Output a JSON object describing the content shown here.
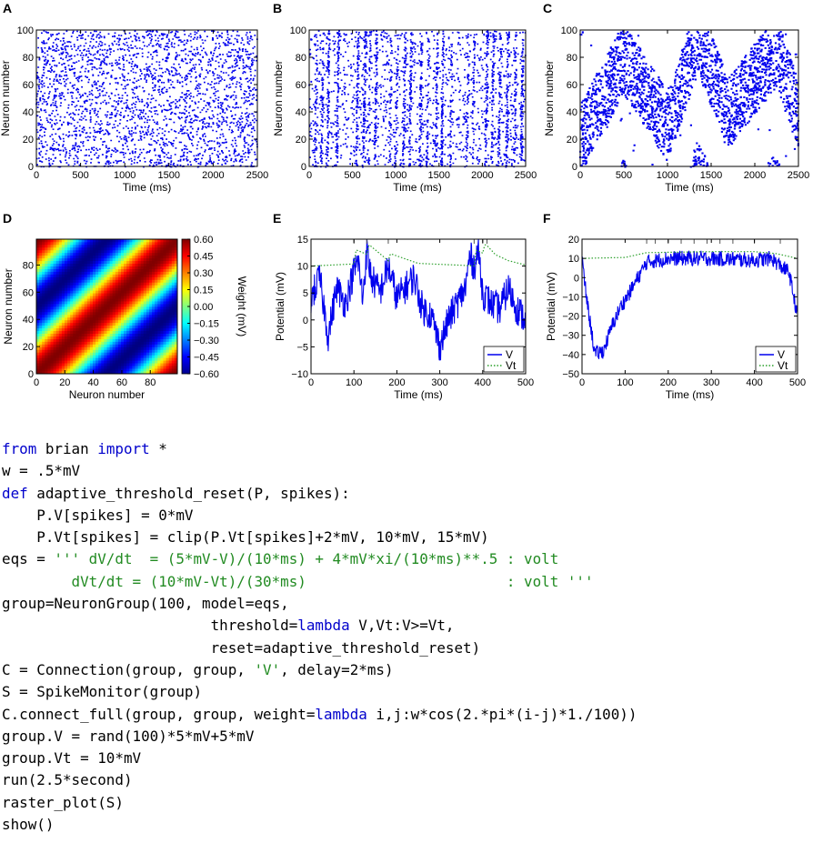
{
  "colors": {
    "raster": "#0000ee",
    "V": "#0000ee",
    "Vt": "#2ca02c",
    "axis": "#000000"
  },
  "panels": {
    "A": "A",
    "B": "B",
    "C": "C",
    "D": "D",
    "E": "E",
    "F": "F"
  },
  "chart_data": [
    {
      "id": "A",
      "type": "scatter",
      "title": "",
      "xlabel": "Time (ms)",
      "ylabel": "Neuron number",
      "xlim": [
        0,
        2500
      ],
      "ylim": [
        0,
        100
      ],
      "xticks": [
        "0",
        "500",
        "1000",
        "1500",
        "2000",
        "2500"
      ],
      "yticks": [
        "0",
        "20",
        "40",
        "60",
        "80",
        "100"
      ],
      "pattern": "random asynchronous spiking, uniform density",
      "color": "#0000ee"
    },
    {
      "id": "B",
      "type": "scatter",
      "title": "",
      "xlabel": "Time (ms)",
      "ylabel": "Neuron number",
      "xlim": [
        0,
        2500
      ],
      "ylim": [
        0,
        100
      ],
      "xticks": [
        "0",
        "500",
        "1000",
        "1500",
        "2000",
        "2500"
      ],
      "yticks": [
        "0",
        "20",
        "40",
        "60",
        "80",
        "100"
      ],
      "pattern": "synchronous vertical bursts",
      "burst_times_ms": [
        80,
        150,
        220,
        330,
        560,
        640,
        700,
        770,
        940,
        1010,
        1100,
        1170,
        1290,
        1370,
        1470,
        1540,
        1640,
        1830,
        1900,
        2050,
        2120,
        2200,
        2290,
        2380,
        2460
      ],
      "color": "#0000ee"
    },
    {
      "id": "C",
      "type": "scatter",
      "title": "",
      "xlabel": "Time (ms)",
      "ylabel": "Neuron number",
      "xlim": [
        0,
        2500
      ],
      "ylim": [
        0,
        100
      ],
      "xticks": [
        "0",
        "500",
        "1000",
        "1500",
        "2000",
        "2500"
      ],
      "yticks": [
        "0",
        "20",
        "40",
        "60",
        "80",
        "100"
      ],
      "pattern": "travelling bump of activity, ~50 neurons wide",
      "bump_center_path": [
        [
          0,
          20
        ],
        [
          500,
          80
        ],
        [
          1000,
          30
        ],
        [
          1350,
          95
        ],
        [
          1700,
          40
        ],
        [
          2250,
          85
        ],
        [
          2500,
          40
        ]
      ],
      "color": "#0000ee"
    },
    {
      "id": "D",
      "type": "heatmap",
      "title": "",
      "xlabel": "Neuron number",
      "ylabel": "Neuron number",
      "xlim": [
        0,
        99
      ],
      "ylim": [
        0,
        99
      ],
      "xticks": [
        "0",
        "20",
        "40",
        "60",
        "80"
      ],
      "yticks": [
        "0",
        "20",
        "40",
        "60",
        "80"
      ],
      "function": "w*cos(2*pi*(i-j)/100)",
      "colorbar": {
        "label": "Weight (mV)",
        "min": -0.6,
        "max": 0.6,
        "ticks": [
          "0.60",
          "0.45",
          "0.30",
          "0.15",
          "0.00",
          "−0.15",
          "−0.30",
          "−0.45",
          "−0.60"
        ]
      }
    },
    {
      "id": "E",
      "type": "line",
      "title": "",
      "xlabel": "Time (ms)",
      "ylabel": "Potential (mV)",
      "xlim": [
        0,
        500
      ],
      "ylim": [
        -10,
        15
      ],
      "xticks": [
        "0",
        "100",
        "200",
        "300",
        "400",
        "500"
      ],
      "yticks": [
        "−10",
        "−5",
        "0",
        "5",
        "10",
        "15"
      ],
      "legend": "bottom-right",
      "spike_ticks_ms": [
        100,
        130,
        180,
        380,
        400,
        410
      ],
      "series": [
        {
          "name": "V",
          "style": "solid",
          "x": [
            0,
            20,
            40,
            60,
            80,
            100,
            110,
            120,
            130,
            140,
            160,
            180,
            200,
            220,
            240,
            260,
            280,
            300,
            320,
            340,
            360,
            370,
            380,
            390,
            400,
            420,
            440,
            460,
            480,
            500
          ],
          "y": [
            4,
            8,
            -3,
            6,
            3,
            9,
            11,
            4,
            13,
            8,
            5,
            10,
            4,
            6,
            8,
            2,
            1,
            -5,
            0,
            3,
            6,
            12,
            10,
            13,
            5,
            3,
            2,
            6,
            2,
            0
          ]
        },
        {
          "name": "Vt",
          "style": "dotted",
          "x": [
            0,
            100,
            105,
            130,
            135,
            180,
            185,
            250,
            380,
            385,
            400,
            405,
            410,
            430,
            460,
            500
          ],
          "y": [
            10,
            10.4,
            13,
            12.2,
            14,
            11,
            12.3,
            10.5,
            10.05,
            13,
            12.4,
            14,
            13.8,
            12.1,
            11,
            10.2
          ]
        }
      ]
    },
    {
      "id": "F",
      "type": "line",
      "title": "",
      "xlabel": "Time (ms)",
      "ylabel": "Potential (mV)",
      "xlim": [
        0,
        500
      ],
      "ylim": [
        -50,
        20
      ],
      "xticks": [
        "0",
        "100",
        "200",
        "300",
        "400",
        "500"
      ],
      "yticks": [
        "−50",
        "−40",
        "−30",
        "−20",
        "−10",
        "0",
        "10",
        "20"
      ],
      "legend": "bottom-right",
      "spike_ticks_ms": [
        150,
        170,
        200,
        230,
        260,
        290,
        320,
        350,
        400,
        460
      ],
      "series": [
        {
          "name": "V",
          "style": "solid",
          "x": [
            0,
            10,
            30,
            50,
            70,
            90,
            110,
            130,
            150,
            200,
            300,
            400,
            440,
            460,
            480,
            500
          ],
          "y": [
            10,
            -10,
            -40,
            -38,
            -25,
            -15,
            -8,
            0,
            8,
            10,
            10,
            9,
            10,
            6,
            3,
            -20
          ]
        },
        {
          "name": "Vt",
          "style": "dotted",
          "x": [
            0,
            100,
            150,
            300,
            400,
            450,
            500
          ],
          "y": [
            10,
            10.5,
            13,
            13.5,
            13.5,
            12.5,
            10
          ]
        }
      ]
    }
  ],
  "code_lines": [
    [
      {
        "t": "from",
        "c": "kw"
      },
      {
        "t": " brian "
      },
      {
        "t": "import",
        "c": "kw"
      },
      {
        "t": " *"
      }
    ],
    [
      {
        "t": "w = .5*mV"
      }
    ],
    [
      {
        "t": "def",
        "c": "kw"
      },
      {
        "t": " adaptive_threshold_reset(P, spikes):"
      }
    ],
    [
      {
        "t": "    P.V[spikes] = 0*mV"
      }
    ],
    [
      {
        "t": "    P.Vt[spikes] = clip(P.Vt[spikes]+2*mV, 10*mV, 15*mV)"
      }
    ],
    [
      {
        "t": "eqs = "
      },
      {
        "t": "''' dV/dt  = (5*mV-V)/(10*ms) + 4*mV*xi/(10*ms)**.5 : volt",
        "c": "str"
      }
    ],
    [
      {
        "t": "        dVt/dt = (10*mV-Vt)/(30*ms)                       : volt '''",
        "c": "str"
      }
    ],
    [
      {
        "t": "group=NeuronGroup(100, model=eqs,"
      }
    ],
    [
      {
        "t": "                        threshold="
      },
      {
        "t": "lambda",
        "c": "kw"
      },
      {
        "t": " V,Vt:V>=Vt,"
      }
    ],
    [
      {
        "t": "                        reset=adaptive_threshold_reset)"
      }
    ],
    [
      {
        "t": "C = Connection(group, group, "
      },
      {
        "t": "'V'",
        "c": "str"
      },
      {
        "t": ", delay=2*ms)"
      }
    ],
    [
      {
        "t": "S = SpikeMonitor(group)"
      }
    ],
    [
      {
        "t": "C.connect_full(group, group, weight="
      },
      {
        "t": "lambda",
        "c": "kw"
      },
      {
        "t": " i,j:w*cos(2.*pi*(i-j)*1./100))"
      }
    ],
    [
      {
        "t": "group.V = rand(100)*5*mV+5*mV"
      }
    ],
    [
      {
        "t": "group.Vt = 10*mV"
      }
    ],
    [
      {
        "t": "run(2.5*second)"
      }
    ],
    [
      {
        "t": "raster_plot(S)"
      }
    ],
    [
      {
        "t": "show()"
      }
    ]
  ]
}
